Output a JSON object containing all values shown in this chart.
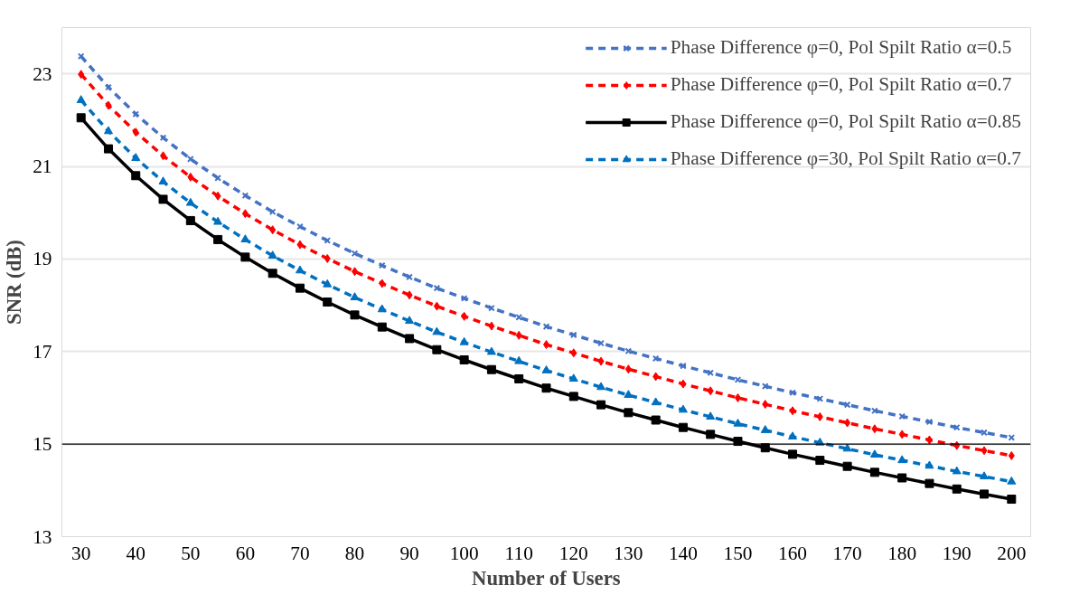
{
  "chart_data": {
    "type": "line",
    "xlabel": "Number of Users",
    "ylabel": "SNR (dB)",
    "x": [
      30,
      35,
      40,
      45,
      50,
      55,
      60,
      65,
      70,
      75,
      80,
      85,
      90,
      95,
      100,
      105,
      110,
      115,
      120,
      125,
      130,
      135,
      140,
      145,
      150,
      155,
      160,
      165,
      170,
      175,
      180,
      185,
      190,
      195,
      200
    ],
    "xlim": [
      26.5,
      203.5
    ],
    "xticks": [
      30,
      40,
      50,
      60,
      70,
      80,
      90,
      100,
      110,
      120,
      130,
      140,
      150,
      160,
      170,
      180,
      190,
      200
    ],
    "ylim": [
      13,
      24
    ],
    "yticks": [
      13,
      15,
      17,
      19,
      21,
      23
    ],
    "grid": "y",
    "legend": "top right",
    "ref_lines": [
      {
        "axis": "y",
        "value": 15,
        "label": null,
        "color": "#000000"
      }
    ],
    "series": [
      {
        "name": "Phase Difference φ=0, Pol Spilt Ratio α=0.5",
        "color": "#4472c4",
        "marker": "cross",
        "line_style": "dashed",
        "values": [
          23.38,
          22.71,
          22.13,
          21.62,
          21.16,
          20.75,
          20.37,
          20.02,
          19.7,
          19.4,
          19.12,
          18.86,
          18.61,
          18.37,
          18.15,
          17.94,
          17.74,
          17.54,
          17.36,
          17.18,
          17.01,
          16.85,
          16.69,
          16.54,
          16.39,
          16.25,
          16.11,
          15.98,
          15.85,
          15.72,
          15.6,
          15.48,
          15.36,
          15.25,
          15.14
        ]
      },
      {
        "name": "Phase Difference φ=0, Pol Spilt Ratio α=0.7",
        "color": "#ff0000",
        "marker": "diamond",
        "line_style": "dashed",
        "values": [
          22.99,
          22.32,
          21.74,
          21.23,
          20.77,
          20.36,
          19.98,
          19.63,
          19.31,
          19.01,
          18.73,
          18.47,
          18.22,
          17.98,
          17.76,
          17.55,
          17.35,
          17.15,
          16.97,
          16.79,
          16.62,
          16.46,
          16.3,
          16.15,
          16.0,
          15.86,
          15.72,
          15.59,
          15.46,
          15.33,
          15.21,
          15.09,
          14.97,
          14.86,
          14.75
        ]
      },
      {
        "name": "Phase Difference φ=0, Pol Spilt Ratio α=0.85",
        "color": "#000000",
        "marker": "square",
        "line_style": "solid",
        "values": [
          22.05,
          21.38,
          20.8,
          20.29,
          19.83,
          19.42,
          19.04,
          18.69,
          18.37,
          18.07,
          17.79,
          17.53,
          17.28,
          17.04,
          16.82,
          16.61,
          16.41,
          16.21,
          16.03,
          15.85,
          15.68,
          15.52,
          15.36,
          15.21,
          15.06,
          14.92,
          14.78,
          14.65,
          14.52,
          14.39,
          14.27,
          14.15,
          14.03,
          13.92,
          13.81
        ]
      },
      {
        "name": "Phase Difference φ=30, Pol Spilt Ratio α=0.7",
        "color": "#0070c0",
        "marker": "triangle",
        "line_style": "dashed",
        "values": [
          22.43,
          21.76,
          21.18,
          20.67,
          20.21,
          19.8,
          19.42,
          19.07,
          18.75,
          18.45,
          18.17,
          17.91,
          17.66,
          17.42,
          17.2,
          16.99,
          16.79,
          16.59,
          16.41,
          16.23,
          16.06,
          15.9,
          15.74,
          15.59,
          15.44,
          15.3,
          15.16,
          15.03,
          14.9,
          14.77,
          14.65,
          14.53,
          14.41,
          14.3,
          14.19
        ]
      }
    ]
  }
}
